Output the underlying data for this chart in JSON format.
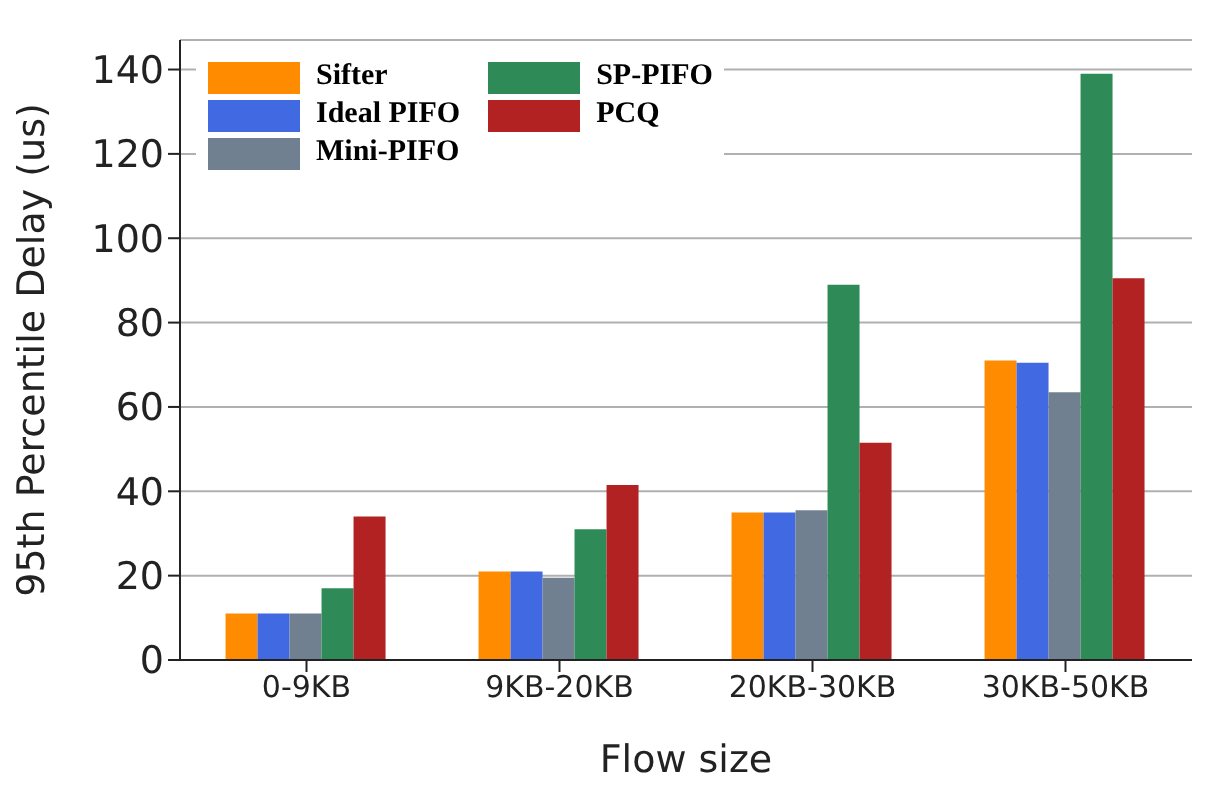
{
  "chart_data": {
    "type": "bar",
    "xlabel": "Flow size",
    "ylabel": "95th Percentile Delay (us)",
    "categories": [
      "0-9KB",
      "9KB-20KB",
      "20KB-30KB",
      "30KB-50KB"
    ],
    "series": [
      {
        "name": "Sifter",
        "color": "#ff8c00",
        "values": [
          11,
          21,
          35,
          71
        ]
      },
      {
        "name": "Ideal PIFO",
        "color": "#4169e1",
        "values": [
          11,
          21,
          35,
          70.5
        ]
      },
      {
        "name": "Mini-PIFO",
        "color": "#708090",
        "values": [
          11,
          19.5,
          35.5,
          63.5
        ]
      },
      {
        "name": "SP-PIFO",
        "color": "#2e8b57",
        "values": [
          17,
          31,
          89,
          139
        ]
      },
      {
        "name": "PCQ",
        "color": "#b22222",
        "values": [
          34,
          41.5,
          51.5,
          90.5
        ]
      }
    ],
    "ylim": [
      0,
      147
    ],
    "yticks": [
      0,
      20,
      40,
      60,
      80,
      100,
      120,
      140
    ],
    "grid": "y",
    "legend": "top left"
  }
}
